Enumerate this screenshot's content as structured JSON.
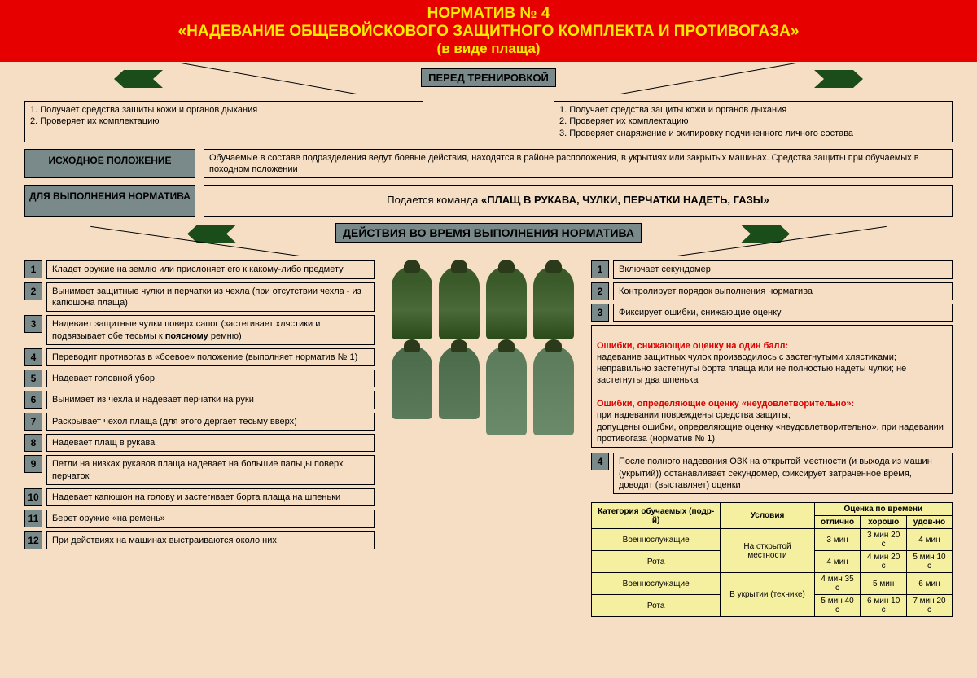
{
  "header": {
    "l1": "НОРМАТИВ № 4",
    "l2": "«НАДЕВАНИЕ ОБЩЕВОЙСКОВОГО ЗАЩИТНОГО КОМПЛЕКТА И ПРОТИВОГАЗА»",
    "l3": "(в виде плаща)"
  },
  "pre": {
    "title": "ПЕРЕД ТРЕНИРОВКОЙ",
    "left": "1. Получает средства защиты кожи и органов дыхания\n2. Проверяет их комплектацию",
    "right": "1. Получает средства защиты кожи и органов дыхания\n2. Проверяет их комплектацию\n3. Проверяет снаряжение и экипировку подчиненного личного состава"
  },
  "pos": {
    "lbl": "ИСХОДНОЕ ПОЛОЖЕНИЕ",
    "text": "Обучаемые в составе подразделения ведут боевые действия, находятся в районе расположения, в укрытиях или закрытых машинах. Средства защиты при обучаемых в походном положении"
  },
  "exec": {
    "lbl": "ДЛЯ ВЫПОЛНЕНИЯ НОРМАТИВА",
    "text": "Подается команда ",
    "cmd": "«ПЛАЩ В РУКАВА, ЧУЛКИ, ПЕРЧАТКИ НАДЕТЬ, ГАЗЫ»"
  },
  "act": {
    "title": "ДЕЙСТВИЯ ВО ВРЕМЯ ВЫПОЛНЕНИЯ НОРМАТИВА"
  },
  "left": [
    "Кладет оружие на землю или прислоняет его к какому-либо предмету",
    "Вынимает  защитные чулки и перчатки из чехла (при отсутствии чехла - из капюшона плаща)",
    "Надевает защитные чулки поверх сапог (застегивает хлястики и подвязывает обе тесьмы к поясному ремню)",
    "Переводит противогаз в «боевое» положение (выполняет норматив № 1)",
    "Надевает головной убор",
    "Вынимает из чехла и надевает перчатки на руки",
    "Раскрывает чехол плаща (для этого дергает тесьму вверх)",
    "Надевает плащ в рукава",
    "Петли на низках рукавов плаща надевает на большие пальцы поверх перчаток",
    "Надевает капюшон на голову и застегивает борта плаща на шпеньки",
    "Берет оружие «на ремень»",
    "При действиях на машинах выстраиваются около них"
  ],
  "right": [
    "Включает секундомер",
    "Контролирует порядок выполнения норматива",
    "Фиксирует ошибки, снижающие оценку"
  ],
  "err": {
    "t1": "Ошибки, снижающие оценку на один балл:",
    "b1": "надевание защитных чулок производилось с застегнутыми хлястиками; неправильно застегнуты борта плаща или не полностью надеты чулки; не застегнуты два шпенька",
    "t2": "Ошибки, определяющие оценку «неудовлетворительно»:",
    "b2": "при надевании повреждены средства защиты;\nдопущены ошибки, определяющие оценку «неудовлетворительно», при надевании противогаза (норматив № 1)"
  },
  "r4": "После полного надевания ОЗК на открытой местности (и выхода из машин (укрытий)) останавливает секундомер, фиксирует затраченное время, доводит (выставляет) оценки",
  "table": {
    "h": [
      "Категория обучаемых (подр-й)",
      "Условия",
      "Оценка по времени"
    ],
    "sub": [
      "отлично",
      "хорошо",
      "удов-но"
    ],
    "rows": [
      [
        "Военнослужащие",
        "На открытой местности",
        "3 мин",
        "3 мин 20 с",
        "4 мин"
      ],
      [
        "Рота",
        "",
        "4 мин",
        "4 мин 20 с",
        "5 мин 10 с"
      ],
      [
        "Военнослужащие",
        "В укрытии (технике)",
        "4 мин 35 с",
        "5 мин",
        "6 мин"
      ],
      [
        "Рота",
        "",
        "5 мин 40 с",
        "6 мин 10 с",
        "7 мин 20 с"
      ]
    ]
  }
}
